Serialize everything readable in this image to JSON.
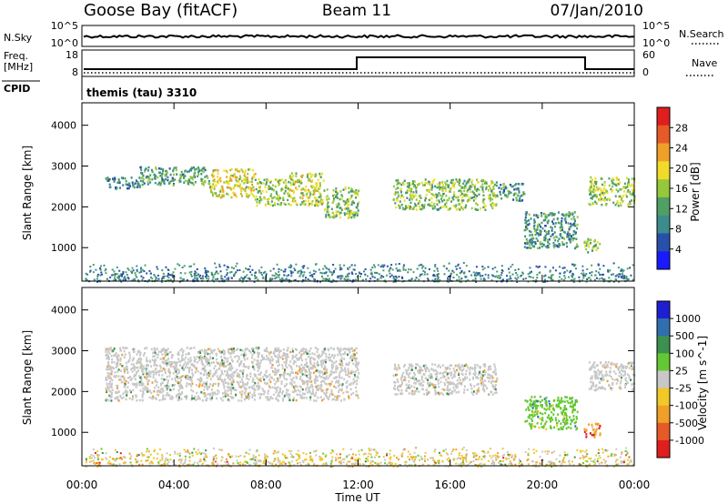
{
  "header": {
    "station": "Goose Bay (fitACF)",
    "beam": "Beam 11",
    "date": "07/Jan/2010"
  },
  "noise_panel": {
    "left_label": "N.Sky",
    "left_ticks": [
      "10^5",
      "10^0"
    ],
    "right_label": "N.Search",
    "right_ticks": [
      "10^5",
      "10^0"
    ]
  },
  "freq_panel": {
    "left_label_1": "Freq.",
    "left_label_2": "[MHz]",
    "left_ticks": [
      "18",
      "8"
    ],
    "right_label": "Nave",
    "right_ticks": [
      "60",
      "0"
    ]
  },
  "cpid": {
    "label": "CPID",
    "program": "themis (tau) 3310"
  },
  "x_axis": {
    "title": "Time UT",
    "ticks": [
      "00:00",
      "04:00",
      "08:00",
      "12:00",
      "16:00",
      "20:00",
      "00:00"
    ]
  },
  "colors": {
    "power": [
      "#1a1aff",
      "#2850a8",
      "#3c8c8c",
      "#50a064",
      "#96c83c",
      "#f0dc28",
      "#f0a028",
      "#e65a28",
      "#e01e1e"
    ],
    "velocity": [
      "#1f1fd2",
      "#2f6fb0",
      "#3c9050",
      "#64c832",
      "#c8c8c8",
      "#f0c828",
      "#f0a028",
      "#e65a28",
      "#e01e1e"
    ]
  },
  "chart_data": [
    {
      "type": "heatmap",
      "title": "",
      "xlabel": "Time UT",
      "ylabel": "Slant Range [km]",
      "xlim": [
        "00:00",
        "24:00"
      ],
      "ylim": [
        180,
        4550
      ],
      "yticks": [
        "4000",
        "3000",
        "2000",
        "1000"
      ],
      "colorbar": {
        "title": "Power [dB]",
        "ticks": [
          "28",
          "24",
          "20",
          "16",
          "12",
          "8",
          "4"
        ],
        "range": [
          0,
          30
        ]
      },
      "bands": [
        {
          "t_start": 1.0,
          "t_end": 2.5,
          "r_lo": 2450,
          "r_hi": 2750,
          "level": 0.25
        },
        {
          "t_start": 2.5,
          "t_end": 5.5,
          "r_lo": 2550,
          "r_hi": 3000,
          "level": 0.35
        },
        {
          "t_start": 5.5,
          "t_end": 7.5,
          "r_lo": 2250,
          "r_hi": 2950,
          "level": 0.6
        },
        {
          "t_start": 7.5,
          "t_end": 9.0,
          "r_lo": 2050,
          "r_hi": 2700,
          "level": 0.5
        },
        {
          "t_start": 9.0,
          "t_end": 10.5,
          "r_lo": 2050,
          "r_hi": 2850,
          "level": 0.55
        },
        {
          "t_start": 10.5,
          "t_end": 12.0,
          "r_lo": 1750,
          "r_hi": 2500,
          "level": 0.45
        },
        {
          "t_start": 13.5,
          "t_end": 18.0,
          "r_lo": 1950,
          "r_hi": 2700,
          "level": 0.45
        },
        {
          "t_start": 18.0,
          "t_end": 19.2,
          "r_lo": 2150,
          "r_hi": 2600,
          "level": 0.3
        },
        {
          "t_start": 19.2,
          "t_end": 21.5,
          "r_lo": 1000,
          "r_hi": 1900,
          "level": 0.3
        },
        {
          "t_start": 21.8,
          "t_end": 22.5,
          "r_lo": 900,
          "r_hi": 1250,
          "level": 0.45
        },
        {
          "t_start": 22.0,
          "t_end": 24.0,
          "r_lo": 2050,
          "r_hi": 2750,
          "level": 0.5
        }
      ],
      "near_range": {
        "r_lo": 180,
        "r_hi": 650,
        "level": 0.25
      }
    },
    {
      "type": "heatmap",
      "title": "",
      "xlabel": "Time UT",
      "ylabel": "Slant Range [km]",
      "xlim": [
        "00:00",
        "24:00"
      ],
      "ylim": [
        180,
        4550
      ],
      "yticks": [
        "4000",
        "3000",
        "2000",
        "1000"
      ],
      "colorbar": {
        "title": "Velocity [m s^-1]",
        "ticks": [
          "1000",
          "500",
          "100",
          "25",
          "-25",
          "-100",
          "-500",
          "-1000"
        ],
        "range": [
          -1000,
          1000
        ]
      },
      "bands": [
        {
          "t_start": 1.0,
          "t_end": 12.0,
          "r_lo": 1800,
          "r_hi": 3100,
          "value": 0
        },
        {
          "t_start": 13.5,
          "t_end": 18.0,
          "r_lo": 1950,
          "r_hi": 2700,
          "value": 0
        },
        {
          "t_start": 19.2,
          "t_end": 21.5,
          "r_lo": 1100,
          "r_hi": 1900,
          "value": 150
        },
        {
          "t_start": 21.8,
          "t_end": 22.5,
          "r_lo": 900,
          "r_hi": 1250,
          "value": -200
        },
        {
          "t_start": 22.0,
          "t_end": 24.0,
          "r_lo": 2050,
          "r_hi": 2750,
          "value": 0
        }
      ],
      "near_range": {
        "r_lo": 180,
        "r_hi": 650,
        "value": -50
      }
    }
  ]
}
